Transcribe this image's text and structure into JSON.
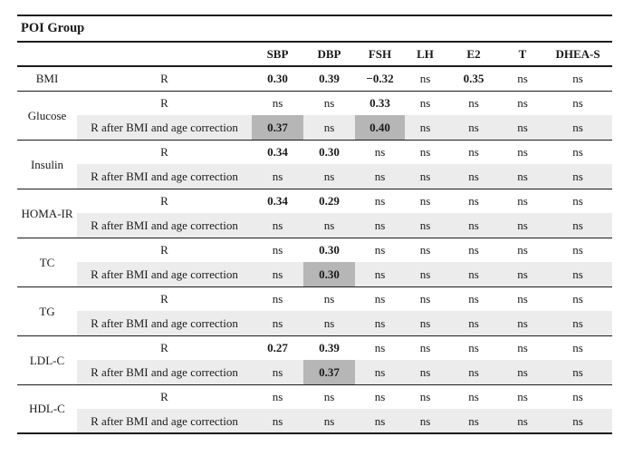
{
  "table": {
    "title": "POI Group",
    "ns_label": "ns",
    "columns": [
      "SBP",
      "DBP",
      "FSH",
      "LH",
      "E2",
      "T",
      "DHEA-S"
    ],
    "row_descriptions": {
      "plain": "R",
      "corrected": "R after BMI and age correction"
    },
    "colors": {
      "row_shade": "#ececec",
      "cell_highlight": "#b6b6b6",
      "rule_line": "#1c1c1c"
    },
    "groups": [
      {
        "label": "BMI",
        "rows": [
          {
            "desc": "R",
            "shaded": false,
            "highlights": [],
            "values": [
              "0.30",
              "0.39",
              "−0.32",
              "ns",
              "0.35",
              "ns",
              "ns"
            ]
          }
        ]
      },
      {
        "label": "Glucose",
        "rows": [
          {
            "desc": "R",
            "shaded": false,
            "highlights": [],
            "values": [
              "ns",
              "ns",
              "0.33",
              "ns",
              "ns",
              "ns",
              "ns"
            ]
          },
          {
            "desc": "R after BMI and age correction",
            "shaded": true,
            "highlights": [
              0,
              2
            ],
            "values": [
              "0.37",
              "ns",
              "0.40",
              "ns",
              "ns",
              "ns",
              "ns"
            ]
          }
        ]
      },
      {
        "label": "Insulin",
        "rows": [
          {
            "desc": "R",
            "shaded": false,
            "highlights": [],
            "values": [
              "0.34",
              "0.30",
              "ns",
              "ns",
              "ns",
              "ns",
              "ns"
            ]
          },
          {
            "desc": "R after BMI and age correction",
            "shaded": true,
            "highlights": [],
            "values": [
              "ns",
              "ns",
              "ns",
              "ns",
              "ns",
              "ns",
              "ns"
            ]
          }
        ]
      },
      {
        "label": "HOMA-IR",
        "rows": [
          {
            "desc": "R",
            "shaded": false,
            "highlights": [],
            "values": [
              "0.34",
              "0.29",
              "ns",
              "ns",
              "ns",
              "ns",
              "ns"
            ]
          },
          {
            "desc": "R after BMI and age correction",
            "shaded": true,
            "highlights": [],
            "values": [
              "ns",
              "ns",
              "ns",
              "ns",
              "ns",
              "ns",
              "ns"
            ]
          }
        ]
      },
      {
        "label": "TC",
        "rows": [
          {
            "desc": "R",
            "shaded": false,
            "highlights": [],
            "values": [
              "ns",
              "0.30",
              "ns",
              "ns",
              "ns",
              "ns",
              "ns"
            ]
          },
          {
            "desc": "R after BMI and age correction",
            "shaded": true,
            "highlights": [
              1
            ],
            "values": [
              "ns",
              "0.30",
              "ns",
              "ns",
              "ns",
              "ns",
              "ns"
            ]
          }
        ]
      },
      {
        "label": "TG",
        "rows": [
          {
            "desc": "R",
            "shaded": false,
            "highlights": [],
            "values": [
              "ns",
              "ns",
              "ns",
              "ns",
              "ns",
              "ns",
              "ns"
            ]
          },
          {
            "desc": "R after BMI and age correction",
            "shaded": true,
            "highlights": [],
            "values": [
              "ns",
              "ns",
              "ns",
              "ns",
              "ns",
              "ns",
              "ns"
            ]
          }
        ]
      },
      {
        "label": "LDL-C",
        "rows": [
          {
            "desc": "R",
            "shaded": false,
            "highlights": [],
            "values": [
              "0.27",
              "0.39",
              "ns",
              "ns",
              "ns",
              "ns",
              "ns"
            ]
          },
          {
            "desc": "R after BMI and age correction",
            "shaded": true,
            "highlights": [
              1
            ],
            "values": [
              "ns",
              "0.37",
              "ns",
              "ns",
              "ns",
              "ns",
              "ns"
            ]
          }
        ]
      },
      {
        "label": "HDL-C",
        "rows": [
          {
            "desc": "R",
            "shaded": false,
            "highlights": [],
            "values": [
              "ns",
              "ns",
              "ns",
              "ns",
              "ns",
              "ns",
              "ns"
            ]
          },
          {
            "desc": "R after BMI and age correction",
            "shaded": true,
            "highlights": [],
            "values": [
              "ns",
              "ns",
              "ns",
              "ns",
              "ns",
              "ns",
              "ns"
            ]
          }
        ]
      }
    ]
  }
}
